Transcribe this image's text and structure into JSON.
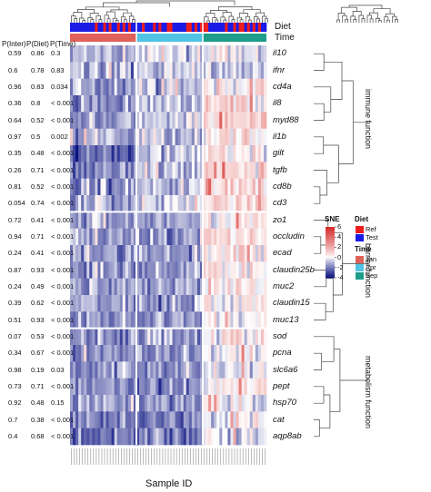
{
  "chart_data": {
    "type": "heatmap",
    "xlabel": "Sample ID",
    "p_value_headers": [
      "P(Inter)",
      "P(Diet)",
      "P(Time)"
    ],
    "annotation_rows": [
      "Diet",
      "Time"
    ],
    "groups": [
      {
        "name": "Jan",
        "n_samples": 24,
        "color": "#e0605a",
        "diet_pattern": "mostly-test"
      },
      {
        "name": "Apr",
        "n_samples": 24,
        "color": "#4fc3e3",
        "diet_pattern": "mixed"
      },
      {
        "name": "Sep",
        "n_samples": 23,
        "color": "#1e9e8a",
        "diet_pattern": "mixed"
      }
    ],
    "genes": [
      {
        "name": "il10",
        "p_inter": "0.59",
        "p_diet": "0.86",
        "p_time": "0.3",
        "levels": [
          -1.2,
          -0.3,
          -0.4
        ]
      },
      {
        "name": "ifnr",
        "p_inter": "0.6",
        "p_diet": "0.78",
        "p_time": "0.83",
        "levels": [
          -1.3,
          -0.6,
          -0.7
        ]
      },
      {
        "name": "cd4a",
        "p_inter": "0.96",
        "p_diet": "0.83",
        "p_time": "0.034",
        "levels": [
          -1.4,
          -0.8,
          0.3
        ]
      },
      {
        "name": "il8",
        "p_inter": "0.36",
        "p_diet": "0.8",
        "p_time": "< 0.001",
        "levels": [
          -1.6,
          -1.0,
          0.6
        ]
      },
      {
        "name": "myd88",
        "p_inter": "0.64",
        "p_diet": "0.52",
        "p_time": "< 0.001",
        "levels": [
          -1.5,
          -0.9,
          0.8
        ]
      },
      {
        "name": "il1b",
        "p_inter": "0.97",
        "p_diet": "0.5",
        "p_time": "0.002",
        "levels": [
          -1.2,
          -0.7,
          0.4
        ]
      },
      {
        "name": "gilt",
        "p_inter": "0.35",
        "p_diet": "0.48",
        "p_time": "< 0.001",
        "levels": [
          -2.2,
          -1.1,
          0.3
        ]
      },
      {
        "name": "tgfb",
        "p_inter": "0.26",
        "p_diet": "0.71",
        "p_time": "< 0.001",
        "levels": [
          -1.8,
          -0.8,
          0.9
        ]
      },
      {
        "name": "cd8b",
        "p_inter": "0.81",
        "p_diet": "0.52",
        "p_time": "< 0.001",
        "levels": [
          -1.6,
          -0.8,
          1.0
        ]
      },
      {
        "name": "cd3",
        "p_inter": "0.054",
        "p_diet": "0.74",
        "p_time": "< 0.001",
        "levels": [
          -1.4,
          -0.6,
          0.9
        ]
      },
      {
        "name": "zo1",
        "p_inter": "0.72",
        "p_diet": "0.41",
        "p_time": "< 0.001",
        "levels": [
          -1.2,
          -1.4,
          0.4
        ]
      },
      {
        "name": "occludin",
        "p_inter": "0.94",
        "p_diet": "0.71",
        "p_time": "< 0.001",
        "levels": [
          -1.3,
          -1.5,
          0.5
        ]
      },
      {
        "name": "ecad",
        "p_inter": "0.24",
        "p_diet": "0.41",
        "p_time": "< 0.001",
        "levels": [
          -1.5,
          -1.7,
          0.4
        ]
      },
      {
        "name": "claudin25b",
        "p_inter": "0.87",
        "p_diet": "0.93",
        "p_time": "< 0.001",
        "levels": [
          -1.6,
          -1.6,
          0.5
        ]
      },
      {
        "name": "muc2",
        "p_inter": "0.24",
        "p_diet": "0.49",
        "p_time": "< 0.001",
        "levels": [
          -1.4,
          -1.5,
          0.3
        ]
      },
      {
        "name": "claudin15",
        "p_inter": "0.39",
        "p_diet": "0.62",
        "p_time": "< 0.001",
        "levels": [
          -1.3,
          -1.4,
          0.2
        ]
      },
      {
        "name": "muc13",
        "p_inter": "0.51",
        "p_diet": "0.93",
        "p_time": "< 0.001",
        "levels": [
          -1.5,
          -1.6,
          0.3
        ]
      },
      {
        "name": "sod",
        "p_inter": "0.07",
        "p_diet": "0.53",
        "p_time": "< 0.001",
        "levels": [
          -1.7,
          -1.3,
          0.2
        ]
      },
      {
        "name": "pcna",
        "p_inter": "0.34",
        "p_diet": "0.67",
        "p_time": "< 0.001",
        "levels": [
          -1.9,
          -1.5,
          0.1
        ]
      },
      {
        "name": "slc6a6",
        "p_inter": "0.98",
        "p_diet": "0.19",
        "p_time": "0.03",
        "levels": [
          -1.5,
          -1.6,
          -0.2
        ]
      },
      {
        "name": "pept",
        "p_inter": "0.73",
        "p_diet": "0.71",
        "p_time": "< 0.001",
        "levels": [
          -1.6,
          -1.7,
          0.0
        ]
      },
      {
        "name": "hsp70",
        "p_inter": "0.92",
        "p_diet": "0.48",
        "p_time": "0.15",
        "levels": [
          -1.4,
          -1.5,
          -0.3
        ]
      },
      {
        "name": "cat",
        "p_inter": "0.7",
        "p_diet": "0.38",
        "p_time": "< 0.001",
        "levels": [
          -1.8,
          -1.9,
          -0.2
        ]
      },
      {
        "name": "aqp8ab",
        "p_inter": "0.4",
        "p_diet": "0.68",
        "p_time": "< 0.001",
        "levels": [
          -1.9,
          -2.0,
          -0.4
        ]
      }
    ],
    "functions": [
      {
        "name": "immune function",
        "genes": [
          "il10",
          "ifnr",
          "cd4a",
          "il8",
          "myd88",
          "il1b",
          "gilt",
          "tgfb",
          "cd8b",
          "cd3"
        ]
      },
      {
        "name": "barrier function",
        "genes": [
          "zo1",
          "occludin",
          "ecad",
          "claudin25b",
          "muc2",
          "claudin15",
          "muc13"
        ]
      },
      {
        "name": "metabolism function",
        "genes": [
          "sod",
          "pcna",
          "slc6a6",
          "pept",
          "hsp70",
          "cat",
          "aqp8ab"
        ]
      }
    ],
    "color_scale": {
      "title": "SNE",
      "ticks": [
        6,
        4,
        2,
        0,
        -2,
        -4
      ],
      "min": -4,
      "max": 6,
      "low_color": "#0a1280",
      "mid_color": "#ffffff",
      "high_color": "#d42a28"
    },
    "legend_diet": {
      "title": "Diet",
      "items": [
        {
          "label": "Ref",
          "color": "#ee1c1c"
        },
        {
          "label": "Test",
          "color": "#1a1ae6"
        }
      ]
    },
    "legend_time": {
      "title": "Time",
      "items": [
        {
          "label": "Jan",
          "color": "#e0605a"
        },
        {
          "label": "Apr",
          "color": "#4fc3e3"
        },
        {
          "label": "Sep",
          "color": "#1e9e8a"
        }
      ]
    }
  }
}
